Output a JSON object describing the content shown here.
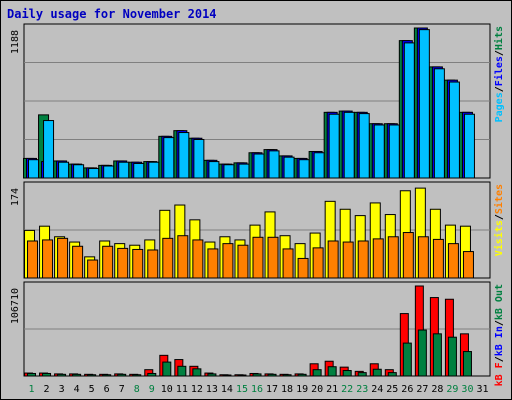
{
  "chart_data": [
    {
      "type": "bar",
      "title": "Daily usage for November 2014",
      "panel": "pages-files-hits",
      "categories": [
        "1",
        "2",
        "3",
        "4",
        "5",
        "6",
        "7",
        "8",
        "9",
        "10",
        "11",
        "12",
        "13",
        "14",
        "15",
        "16",
        "17",
        "18",
        "19",
        "20",
        "21",
        "22",
        "23",
        "24",
        "25",
        "26",
        "27",
        "28",
        "29",
        "30",
        "31"
      ],
      "y_max": 1188,
      "y_max_label": "1188",
      "legend": [
        {
          "label": "Pages",
          "color": "#00c0ff"
        },
        {
          "label": "/",
          "color": "#000000"
        },
        {
          "label": "Files",
          "color": "#0000ff"
        },
        {
          "label": "/",
          "color": "#000000"
        },
        {
          "label": "Hits",
          "color": "#008040"
        }
      ],
      "series": [
        {
          "name": "Hits",
          "color": "#008040",
          "values": [
            155,
            500,
            135,
            110,
            80,
            100,
            135,
            125,
            130,
            330,
            375,
            315,
            140,
            110,
            120,
            200,
            225,
            175,
            155,
            210,
            520,
            530,
            520,
            430,
            430,
            1088,
            1188,
            880,
            775,
            520,
            0
          ]
        },
        {
          "name": "Files",
          "color": "#0000ff",
          "values": [
            155,
            130,
            135,
            110,
            80,
            100,
            135,
            125,
            130,
            330,
            375,
            315,
            140,
            110,
            120,
            200,
            225,
            175,
            155,
            210,
            520,
            530,
            520,
            430,
            430,
            1088,
            1188,
            880,
            775,
            520,
            0
          ]
        },
        {
          "name": "Pages",
          "color": "#00c0ff",
          "values": [
            145,
            455,
            125,
            105,
            75,
            95,
            125,
            115,
            125,
            320,
            360,
            305,
            130,
            105,
            110,
            190,
            215,
            165,
            145,
            200,
            505,
            520,
            510,
            420,
            420,
            1070,
            1175,
            865,
            760,
            505,
            0
          ]
        }
      ]
    },
    {
      "type": "bar",
      "panel": "visits-sites",
      "categories": [
        "1",
        "2",
        "3",
        "4",
        "5",
        "6",
        "7",
        "8",
        "9",
        "10",
        "11",
        "12",
        "13",
        "14",
        "15",
        "16",
        "17",
        "18",
        "19",
        "20",
        "21",
        "22",
        "23",
        "24",
        "25",
        "26",
        "27",
        "28",
        "29",
        "30",
        "31"
      ],
      "y_max": 174,
      "y_max_label": "174",
      "legend": [
        {
          "label": "Visits",
          "color": "#ffff00"
        },
        {
          "label": "/",
          "color": "#000000"
        },
        {
          "label": "Sites",
          "color": "#ff8000"
        }
      ],
      "series": [
        {
          "name": "Visits",
          "color": "#ffff00",
          "values": [
            90,
            98,
            78,
            68,
            40,
            70,
            65,
            62,
            72,
            128,
            138,
            110,
            68,
            78,
            72,
            100,
            125,
            80,
            65,
            85,
            145,
            130,
            118,
            142,
            120,
            165,
            170,
            130,
            100,
            98,
            0
          ]
        },
        {
          "name": "Sites",
          "color": "#ff8000",
          "values": [
            70,
            72,
            75,
            60,
            34,
            60,
            56,
            54,
            53,
            75,
            80,
            72,
            55,
            65,
            62,
            77,
            77,
            55,
            37,
            57,
            70,
            68,
            70,
            74,
            78,
            86,
            78,
            73,
            65,
            50,
            0
          ]
        }
      ]
    },
    {
      "type": "bar",
      "panel": "kbin-kbout-kbf",
      "categories": [
        "1",
        "2",
        "3",
        "4",
        "5",
        "6",
        "7",
        "8",
        "9",
        "10",
        "11",
        "12",
        "13",
        "14",
        "15",
        "16",
        "17",
        "18",
        "19",
        "20",
        "21",
        "22",
        "23",
        "24",
        "25",
        "26",
        "27",
        "28",
        "29",
        "30",
        "31"
      ],
      "highlight_categories": [
        "1",
        "8",
        "9",
        "15",
        "16",
        "22",
        "23",
        "29",
        "30"
      ],
      "y_max": 106710,
      "y_max_label": "106710",
      "legend": [
        {
          "label": "kB F",
          "color": "#ff0000"
        },
        {
          "label": "/",
          "color": "#000000"
        },
        {
          "label": "kB In",
          "color": "#0000ff"
        },
        {
          "label": "/",
          "color": "#000000"
        },
        {
          "label": "kB Out",
          "color": "#008040"
        }
      ],
      "series": [
        {
          "name": "kB F",
          "color": "#ff0000",
          "values": [
            3500,
            3500,
            2500,
            2500,
            2000,
            2000,
            2500,
            2000,
            7500,
            24500,
            19500,
            11500,
            3500,
            1500,
            1500,
            3000,
            2500,
            2000,
            2500,
            14500,
            17500,
            10500,
            5500,
            14500,
            7500,
            74000,
            106710,
            93000,
            91000,
            50000,
            0
          ]
        },
        {
          "name": "kB Out",
          "color": "#008040",
          "values": [
            3000,
            3000,
            2000,
            2000,
            1500,
            1500,
            2000,
            1500,
            3000,
            16500,
            11500,
            8500,
            2500,
            1000,
            1000,
            2500,
            2000,
            1500,
            2000,
            7500,
            11000,
            6500,
            4000,
            8000,
            4000,
            39000,
            54500,
            50000,
            46000,
            29000,
            0
          ]
        }
      ]
    }
  ]
}
